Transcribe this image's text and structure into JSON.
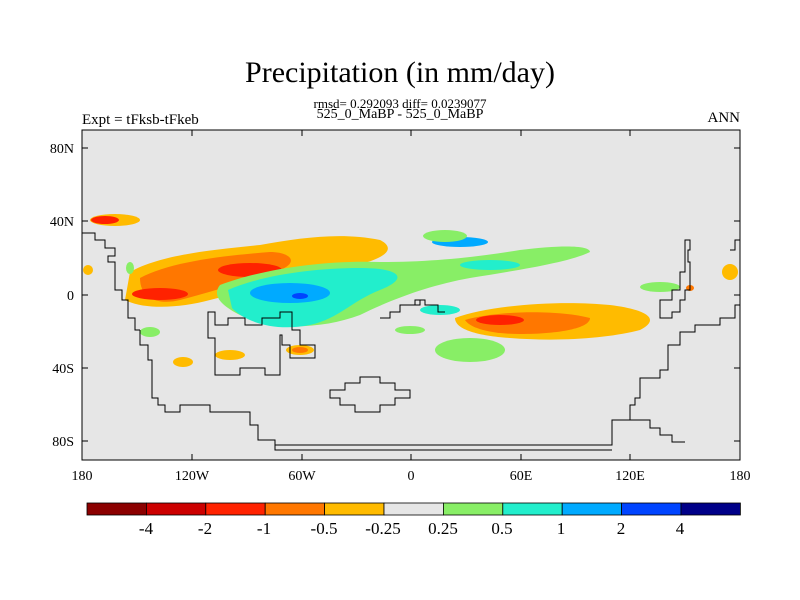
{
  "header": {
    "title": "Precipitation (in mm/day)",
    "stats": "rmsd= 0.292093 diff= 0.0239077",
    "subtitle": "525_0_MaBP - 525_0_MaBP",
    "left_label": "Expt = tFksb-tFkeb",
    "right_label": "ANN"
  },
  "axes": {
    "y_ticks": [
      "80N",
      "40N",
      "0",
      "40S",
      "80S"
    ],
    "x_ticks": [
      "180",
      "120W",
      "60W",
      "0",
      "60E",
      "120E",
      "180"
    ]
  },
  "colorbar": {
    "labels": [
      "-4",
      "-2",
      "-1",
      "-0.5",
      "-0.25",
      "0.25",
      "0.5",
      "1",
      "2",
      "4"
    ],
    "colors": [
      "#8b0000",
      "#cc0000",
      "#ff2200",
      "#ff7700",
      "#ffbb00",
      "#e6e6e6",
      "#88ee66",
      "#22eecc",
      "#00aaff",
      "#0044ff",
      "#000088"
    ]
  },
  "colors": {
    "background": "#e6e6e6",
    "coast": "#000000"
  }
}
